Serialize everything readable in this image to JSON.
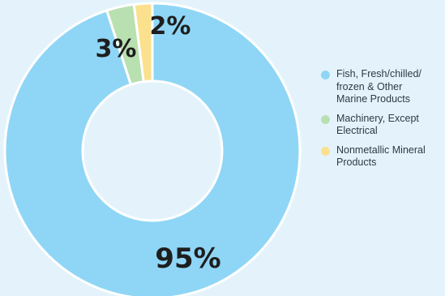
{
  "chart_data": {
    "type": "pie",
    "donut": true,
    "categories": [
      "Fish, Fresh/chilled/\nfrozen & Other\nMarine Products",
      "Machinery, Except\nElectrical",
      "Nonmetallic Mineral\nProducts"
    ],
    "values": [
      95,
      3,
      2
    ],
    "value_labels": [
      "95%",
      "3%",
      "2%"
    ],
    "colors": [
      "#8fd6f6",
      "#b9e0b0",
      "#fbe08e"
    ],
    "legend_position": "right"
  }
}
